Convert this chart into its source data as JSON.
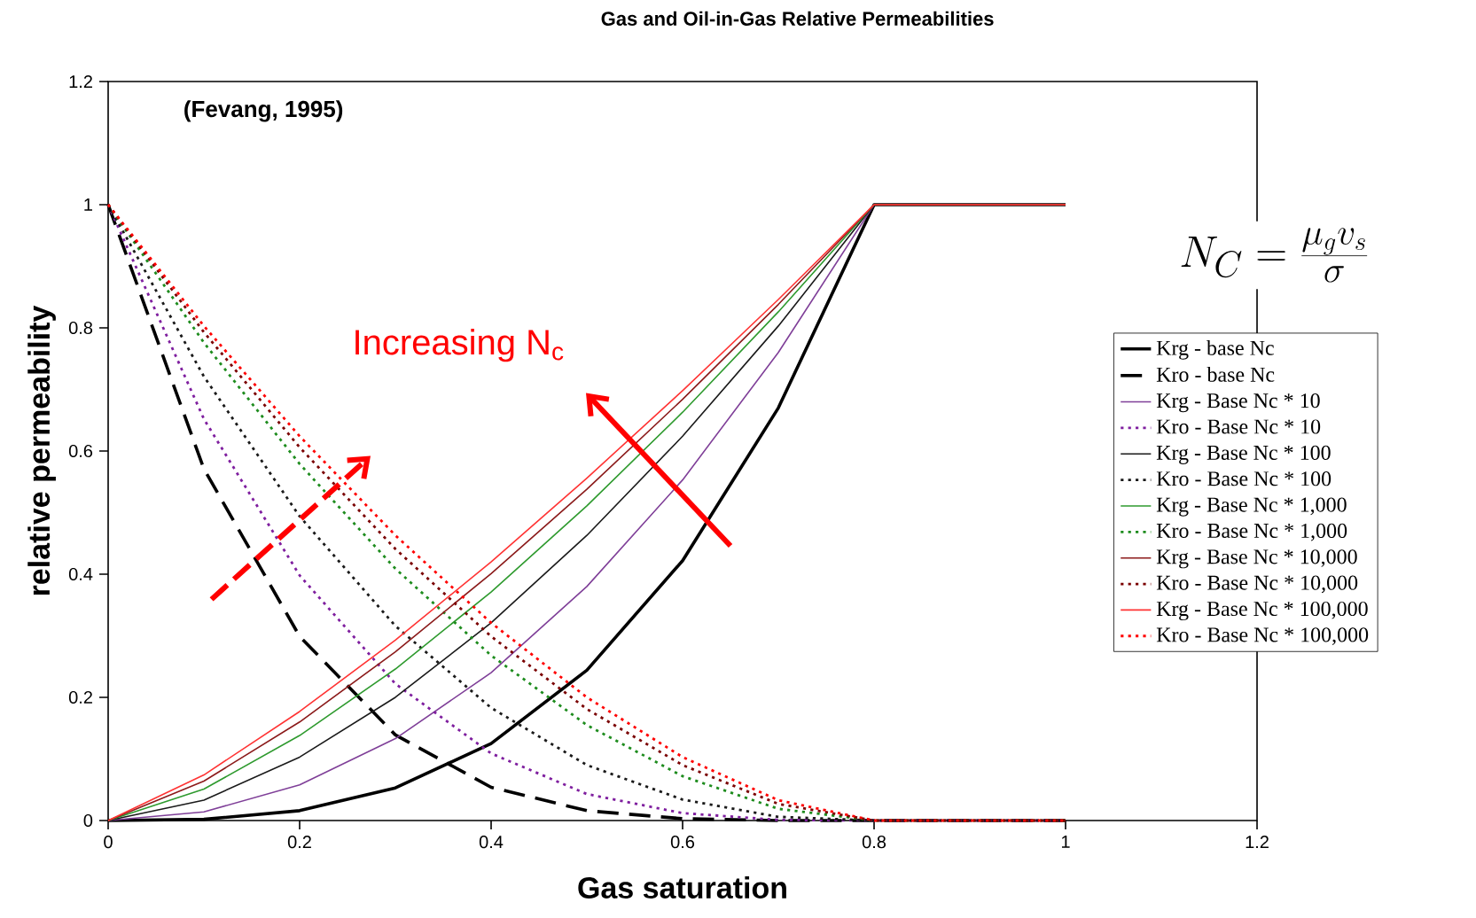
{
  "chart_data": {
    "type": "line",
    "title": "Gas and Oil-in-Gas Relative Permeabilities",
    "xlabel": "Gas saturation",
    "ylabel": "relative permeability",
    "annotations": [
      "(Fevang, 1995)",
      "Increasing N$_{c}$",
      "N_{C} = \\frac{\\mu_{g} v_{s}}{\\sigma}"
    ],
    "x": [
      0,
      0.1,
      0.2,
      0.3,
      0.4,
      0.5,
      0.6,
      0.7,
      0.8,
      1.0
    ],
    "series": [
      {
        "name": "Krg - base Nc",
        "color": "#000000",
        "line_style": "solid",
        "values": [
          0,
          0.002,
          0.016,
          0.053,
          0.125,
          0.244,
          0.422,
          0.67,
          1,
          1
        ]
      },
      {
        "name": "Kro - base Nc",
        "color": "#000000",
        "line_style": "dashed",
        "values": [
          1,
          0.571,
          0.299,
          0.139,
          0.054,
          0.016,
          0.003,
          0,
          0,
          0
        ]
      },
      {
        "name": "Krg - Base Nc * 10",
        "color": "#7f3f98",
        "line_style": "solid",
        "values": [
          0,
          0.014,
          0.058,
          0.133,
          0.24,
          0.38,
          0.553,
          0.76,
          1,
          1
        ]
      },
      {
        "name": "Kro - Base Nc * 10",
        "color": "#7f1f9f",
        "line_style": "dotted",
        "values": [
          1,
          0.652,
          0.398,
          0.222,
          0.109,
          0.043,
          0.012,
          0.001,
          0,
          0
        ]
      },
      {
        "name": "Krg - Base Nc * 100",
        "color": "#1a1a1a",
        "line_style": "solid",
        "values": [
          0,
          0.033,
          0.103,
          0.2,
          0.321,
          0.463,
          0.624,
          0.803,
          1,
          1
        ]
      },
      {
        "name": "Kro - Base Nc * 100",
        "color": "#1a1a1a",
        "line_style": "dotted",
        "values": [
          1,
          0.721,
          0.494,
          0.316,
          0.183,
          0.09,
          0.034,
          0.006,
          0,
          0
        ]
      },
      {
        "name": "Krg  - Base Nc * 1,000",
        "color": "#2e9a2e",
        "line_style": "solid",
        "values": [
          0,
          0.051,
          0.138,
          0.246,
          0.371,
          0.511,
          0.663,
          0.826,
          1,
          1
        ]
      },
      {
        "name": "Kro - Base Nc * 1,000",
        "color": "#1e8c1e",
        "line_style": "dotted",
        "values": [
          1,
          0.776,
          0.579,
          0.409,
          0.268,
          0.155,
          0.072,
          0.019,
          0,
          0
        ]
      },
      {
        "name": "Krg  - Base Nc * 10,000",
        "color": "#8b1a1a",
        "line_style": "solid",
        "values": [
          0,
          0.064,
          0.16,
          0.274,
          0.401,
          0.538,
          0.684,
          0.838,
          1,
          1
        ]
      },
      {
        "name": "Kro - Base Nc * 10,000",
        "color": "#7a0000",
        "line_style": "dotted",
        "values": [
          1,
          0.793,
          0.606,
          0.441,
          0.299,
          0.181,
          0.09,
          0.027,
          0,
          0
        ]
      },
      {
        "name": "Krg  - Base Nc * 100,000",
        "color": "#ff3333",
        "line_style": "solid",
        "values": [
          0,
          0.074,
          0.177,
          0.293,
          0.42,
          0.556,
          0.698,
          0.846,
          1,
          1
        ]
      },
      {
        "name": "Kro - Base Nc * 100,000",
        "color": "#ff0000",
        "line_style": "dotted",
        "values": [
          1,
          0.803,
          0.624,
          0.463,
          0.321,
          0.2,
          0.103,
          0.033,
          0,
          0
        ]
      }
    ],
    "xlim": [
      0,
      1.2
    ],
    "ylim": [
      0,
      1.2
    ],
    "xticks": [
      0,
      0.2,
      0.4,
      0.6,
      0.8,
      1,
      1.2
    ],
    "yticks": [
      0,
      0.2,
      0.4,
      0.6,
      0.8,
      1,
      1.2
    ],
    "grid": false,
    "legend": "right",
    "marker": "none"
  }
}
